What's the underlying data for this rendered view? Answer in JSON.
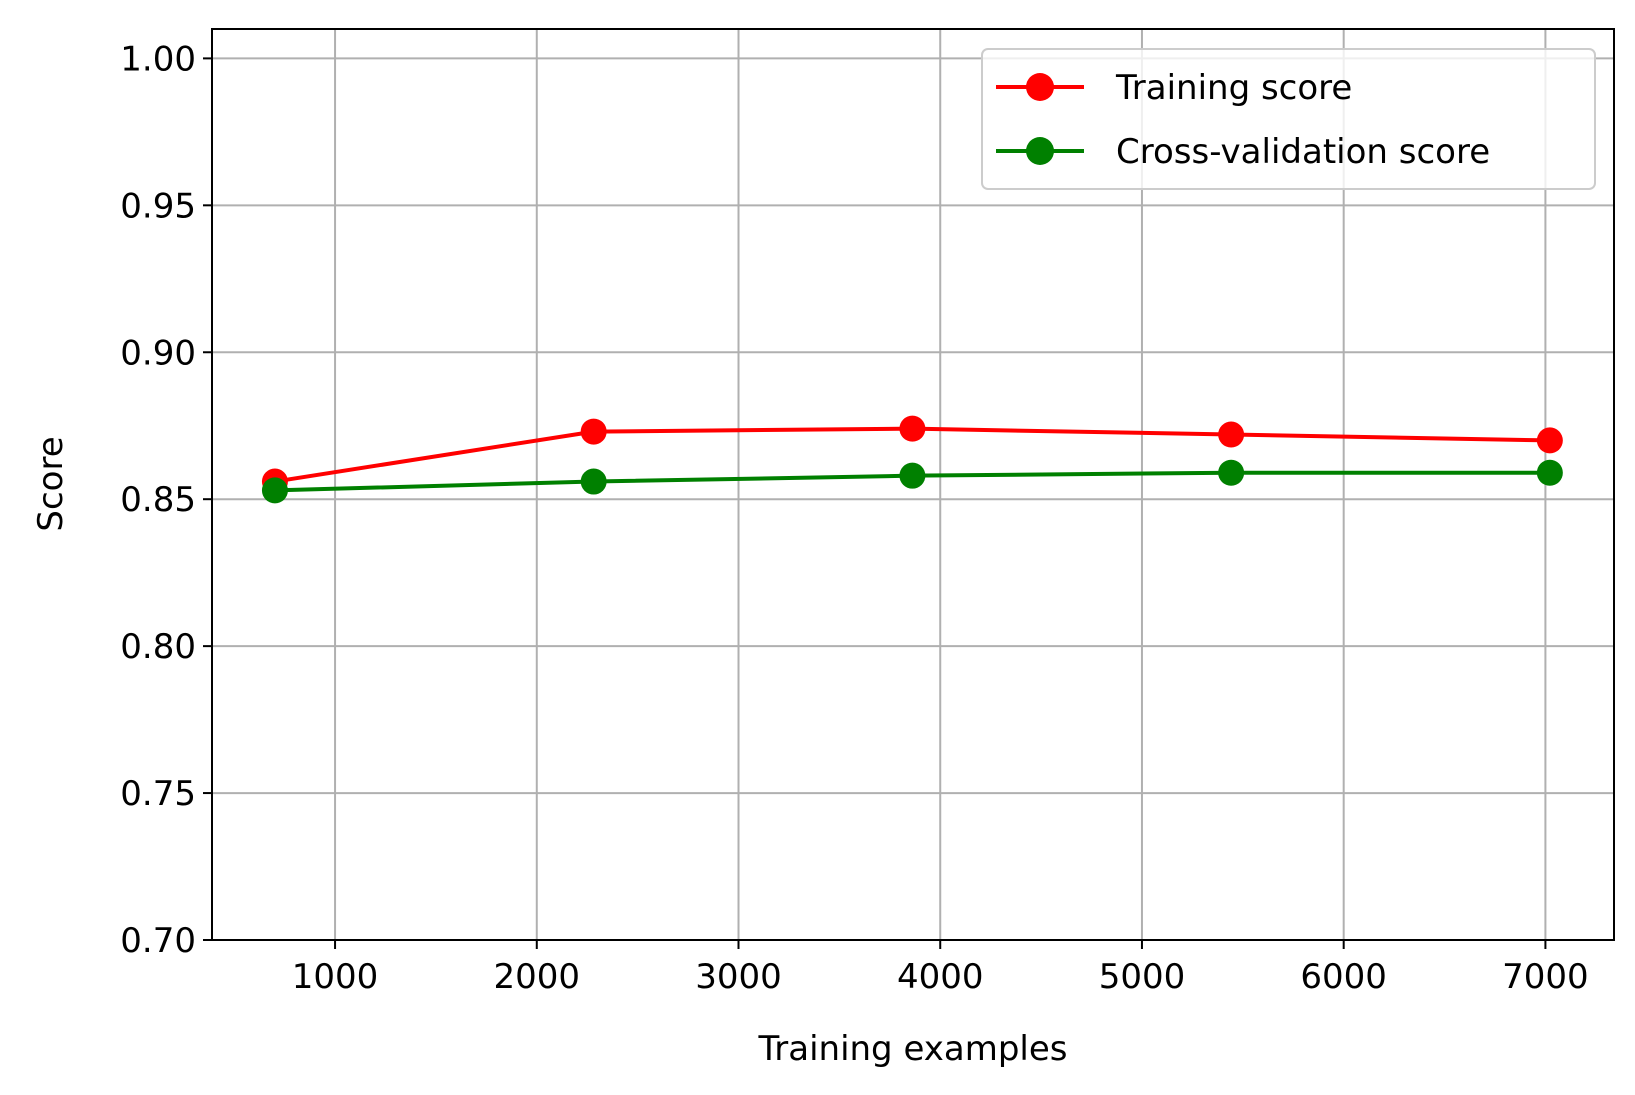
{
  "chart_data": {
    "type": "line",
    "title": "",
    "xlabel": "Training examples",
    "ylabel": "Score",
    "xlim": [
      390,
      7340
    ],
    "ylim": [
      0.7,
      1.01
    ],
    "xticks": [
      1000,
      2000,
      3000,
      4000,
      5000,
      6000,
      7000
    ],
    "xtick_labels": [
      "1000",
      "2000",
      "3000",
      "4000",
      "5000",
      "6000",
      "7000"
    ],
    "yticks": [
      0.7,
      0.75,
      0.8,
      0.85,
      0.9,
      0.95,
      1.0
    ],
    "ytick_labels": [
      "0.70",
      "0.75",
      "0.80",
      "0.85",
      "0.90",
      "0.95",
      "1.00"
    ],
    "grid": true,
    "legend_position": "top-right",
    "x": [
      702,
      2282,
      3862,
      5442,
      7022
    ],
    "series": [
      {
        "name": "Training score",
        "color": "#ff0000",
        "values": [
          0.856,
          0.873,
          0.874,
          0.872,
          0.87
        ]
      },
      {
        "name": "Cross-validation score",
        "color": "#008000",
        "values": [
          0.853,
          0.856,
          0.858,
          0.859,
          0.859
        ]
      }
    ]
  }
}
